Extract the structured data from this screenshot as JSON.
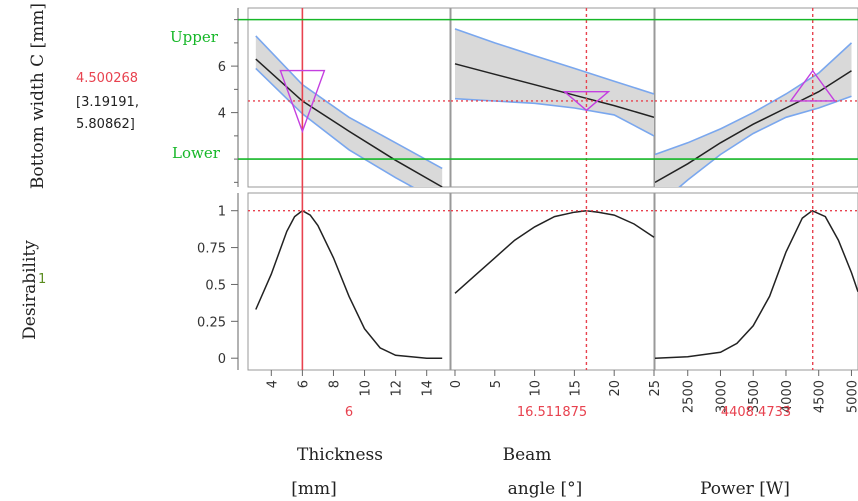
{
  "colors": {
    "accent_red": "#e8424f",
    "limit_green": "#16b728",
    "band_fill": "#d9d9d9",
    "band_edge": "#7aa7ee",
    "curve": "#222222",
    "triangle": "#c43fe0",
    "panel_border": "#999999"
  },
  "response": {
    "name": "Bottom width C [mm]",
    "value": "4.500268",
    "ci_line1": "[3.19191,",
    "ci_line2": "5.80862]",
    "upper_label": "Upper",
    "lower_label": "Lower"
  },
  "desirability": {
    "name": "Desirability",
    "value": "1"
  },
  "factors": [
    {
      "name_line1": "Thickness",
      "name_line2": "[mm]",
      "current": "6"
    },
    {
      "name_line1": "Beam",
      "name_line2": "angle [°]",
      "current": "16.511875"
    },
    {
      "name_line1": "",
      "name_line2": "Power [W]",
      "current": "4408.4733"
    }
  ],
  "chart_data": {
    "type": "line",
    "title": "",
    "response_ylim": [
      0.8,
      8.5
    ],
    "response_yticks": [
      "4",
      "6"
    ],
    "response_limits": {
      "upper": 8.0,
      "lower": 2.0
    },
    "desirability_ylim": [
      -0.08,
      1.12
    ],
    "desirability_yticks": [
      "0",
      "0.25",
      "0.5",
      "0.75",
      "1"
    ],
    "panels": [
      {
        "factor": "Thickness [mm]",
        "xlim": [
          2.5,
          15.5
        ],
        "xticks": [
          "4",
          "6",
          "8",
          "10",
          "12",
          "14"
        ],
        "current_x": 6,
        "solid_marker": true,
        "response": {
          "x": [
            3,
            6,
            9,
            12,
            15
          ],
          "y": [
            6.3,
            4.5,
            3.2,
            1.95,
            0.8
          ],
          "lower": [
            5.9,
            3.95,
            2.4,
            1.2,
            0.1
          ],
          "upper": [
            7.3,
            5.2,
            3.8,
            2.7,
            1.6
          ]
        },
        "desirability": {
          "x": [
            3,
            4,
            5,
            5.5,
            6,
            6.5,
            7,
            8,
            9,
            10,
            11,
            12,
            13,
            14,
            15
          ],
          "y": [
            0.33,
            0.57,
            0.86,
            0.96,
            1.0,
            0.97,
            0.9,
            0.68,
            0.42,
            0.2,
            0.07,
            0.02,
            0.01,
            0.0,
            0.0
          ]
        }
      },
      {
        "factor": "Beam angle [°]",
        "xlim": [
          -0.5,
          25
        ],
        "xticks": [
          "0",
          "5",
          "10",
          "15",
          "20",
          "25"
        ],
        "current_x": 16.511875,
        "solid_marker": false,
        "response": {
          "x": [
            0,
            5,
            10,
            15,
            20,
            25
          ],
          "y": [
            6.1,
            5.65,
            5.2,
            4.75,
            4.3,
            3.8
          ],
          "lower": [
            4.6,
            4.5,
            4.4,
            4.2,
            3.9,
            3.0
          ],
          "upper": [
            7.6,
            7.0,
            6.45,
            5.9,
            5.35,
            4.8
          ]
        },
        "desirability": {
          "x": [
            0,
            2.5,
            5,
            7.5,
            10,
            12.5,
            15,
            16.5,
            18,
            20,
            22.5,
            25
          ],
          "y": [
            0.44,
            0.56,
            0.68,
            0.8,
            0.89,
            0.96,
            0.99,
            1.0,
            0.99,
            0.97,
            0.91,
            0.82
          ]
        }
      },
      {
        "factor": "Power [W]",
        "xlim": [
          2000,
          5100
        ],
        "xticks": [
          "2500",
          "3000",
          "3500",
          "4000",
          "4500",
          "5000"
        ],
        "current_x": 4408.4733,
        "solid_marker": false,
        "response": {
          "x": [
            2000,
            2500,
            3000,
            3500,
            4000,
            4500,
            5000
          ],
          "y": [
            1.0,
            1.8,
            2.7,
            3.5,
            4.2,
            4.9,
            5.8
          ],
          "lower": [
            -0.1,
            1.1,
            2.2,
            3.1,
            3.8,
            4.2,
            4.7
          ],
          "upper": [
            2.2,
            2.7,
            3.3,
            4.0,
            4.8,
            5.7,
            7.0
          ]
        },
        "desirability": {
          "x": [
            2000,
            2500,
            3000,
            3250,
            3500,
            3750,
            4000,
            4250,
            4400,
            4600,
            4800,
            5000,
            5100
          ],
          "y": [
            0.0,
            0.01,
            0.04,
            0.1,
            0.22,
            0.42,
            0.72,
            0.95,
            1.0,
            0.96,
            0.8,
            0.58,
            0.45
          ]
        }
      }
    ]
  }
}
